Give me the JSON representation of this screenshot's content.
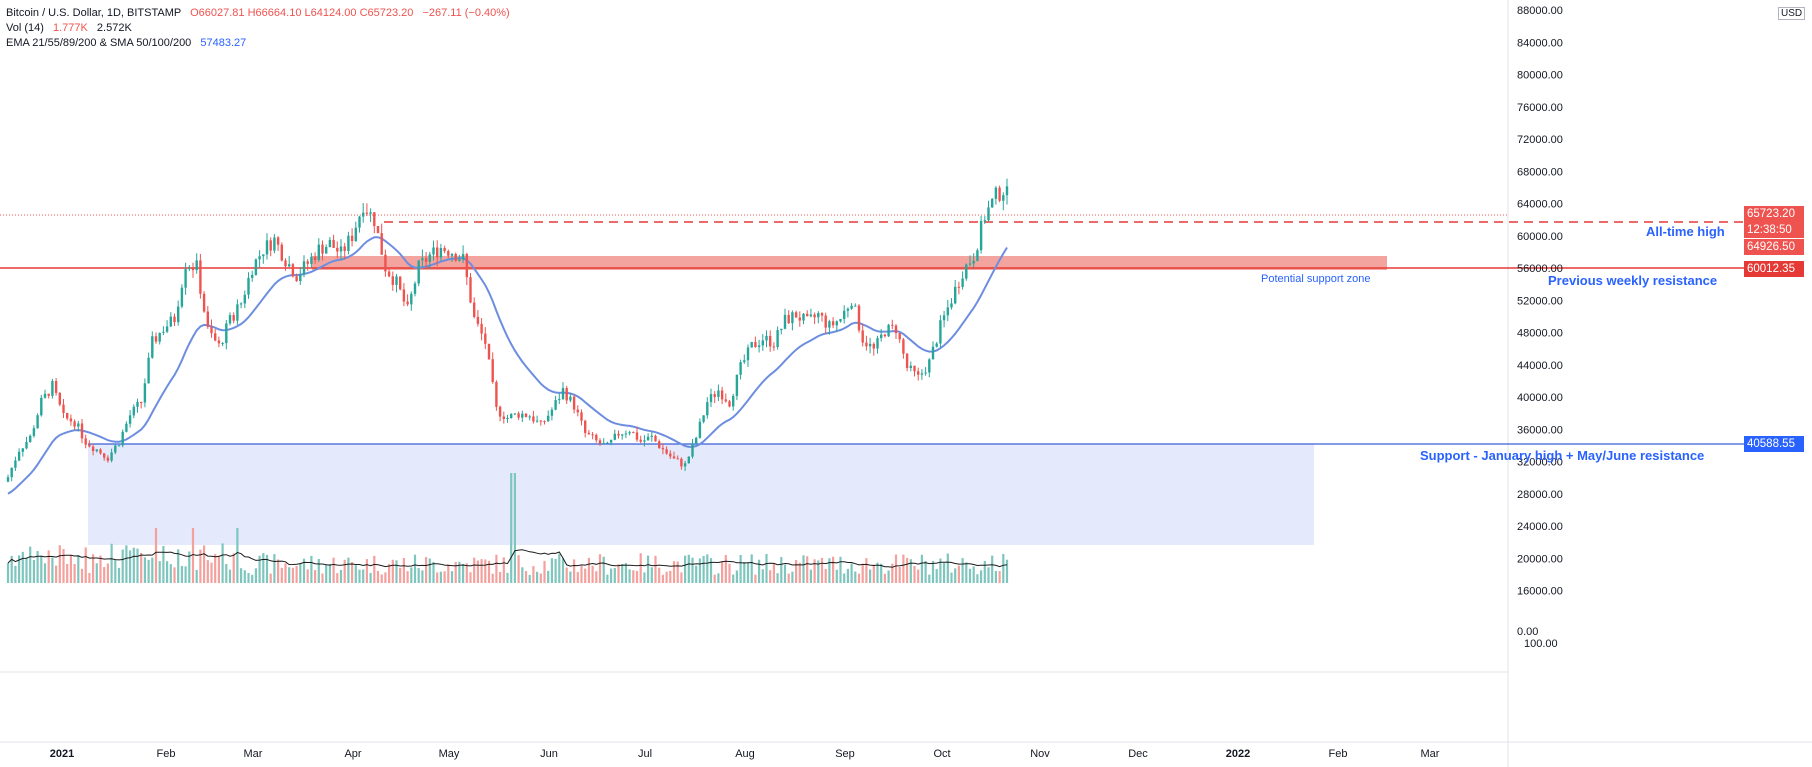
{
  "legend": {
    "symbol": "Bitcoin / U.S. Dollar, 1D, BITSTAMP",
    "open": "O66027.81",
    "high": "H66664.10",
    "low": "L64124.00",
    "close": "C65723.20",
    "change": "−267.11 (−0.40%)",
    "vol_label": "Vol (14)",
    "vol_value": "1.777K",
    "vol_ma": "2.572K",
    "ind_label": "EMA 21/55/89/200 & SMA 50/100/200",
    "ind_value": "57483.27"
  },
  "currency": "USD",
  "price_axis": [
    "88000.00",
    "84000.00",
    "80000.00",
    "76000.00",
    "72000.00",
    "68000.00",
    "64000.00",
    "60000.00",
    "56000.00",
    "52000.00",
    "48000.00",
    "44000.00",
    "40000.00",
    "36000.00",
    "32000.00",
    "28000.00",
    "24000.00",
    "20000.00",
    "16000.00"
  ],
  "volume_axis": [
    "0.00",
    "100.00"
  ],
  "time_axis": [
    "2021",
    "Feb",
    "Mar",
    "Apr",
    "May",
    "Jun",
    "Jul",
    "Aug",
    "Sep",
    "Oct",
    "Nov",
    "Dec",
    "2022",
    "Feb",
    "Mar"
  ],
  "price_labels": {
    "last": "65723.20",
    "countdown": "12:38:50",
    "prev": "64926.50",
    "resistance": "60012.35",
    "support": "40588.55"
  },
  "annotations": {
    "ath": "All-time high",
    "potential": "Potential support zone",
    "weekly": "Previous weekly resistance",
    "support": "Support - January high + May/June resistance"
  },
  "colors": {
    "up": "#26a69a",
    "down": "#ef5350",
    "ema": "#6d8ee0",
    "support_line": "#2962ff",
    "resistance_line": "#e53935",
    "support_zone": "#e3e8fb",
    "resist_zone": "#f39a94"
  },
  "chart_data": {
    "type": "candlestick",
    "timeframe": "1D",
    "y_range": [
      15000,
      88000
    ],
    "levels": {
      "all_time_high": 64926.5,
      "weekly_resistance": 60012.35,
      "support": 40588.55,
      "support_zone_low": 29600,
      "resistance_zone_high": 61600
    },
    "daily_close": [
      [
        0,
        29000
      ],
      [
        3,
        32500
      ],
      [
        6,
        34000
      ],
      [
        9,
        38500
      ],
      [
        12,
        40500
      ],
      [
        15,
        36500
      ],
      [
        18,
        36000
      ],
      [
        21,
        33500
      ],
      [
        24,
        32500
      ],
      [
        27,
        31500
      ],
      [
        30,
        33500
      ],
      [
        33,
        36800
      ],
      [
        36,
        38500
      ],
      [
        39,
        46000
      ],
      [
        42,
        47800
      ],
      [
        45,
        49000
      ],
      [
        48,
        56000
      ],
      [
        51,
        55500
      ],
      [
        54,
        47500
      ],
      [
        57,
        45500
      ],
      [
        60,
        48800
      ],
      [
        63,
        51000
      ],
      [
        66,
        55500
      ],
      [
        69,
        57800
      ],
      [
        72,
        59000
      ],
      [
        75,
        56500
      ],
      [
        78,
        54500
      ],
      [
        81,
        56000
      ],
      [
        84,
        57800
      ],
      [
        87,
        58500
      ],
      [
        90,
        57200
      ],
      [
        93,
        59500
      ],
      [
        96,
        63500
      ],
      [
        99,
        61500
      ],
      [
        102,
        55500
      ],
      [
        105,
        53500
      ],
      [
        108,
        50000
      ],
      [
        111,
        55500
      ],
      [
        114,
        57000
      ],
      [
        117,
        58000
      ],
      [
        120,
        57500
      ],
      [
        123,
        56500
      ],
      [
        126,
        49000
      ],
      [
        129,
        46000
      ],
      [
        132,
        37500
      ],
      [
        135,
        36500
      ],
      [
        138,
        37000
      ],
      [
        141,
        36800
      ],
      [
        144,
        35500
      ],
      [
        147,
        37500
      ],
      [
        150,
        40000
      ],
      [
        153,
        38000
      ],
      [
        156,
        34500
      ],
      [
        159,
        33500
      ],
      [
        162,
        32800
      ],
      [
        165,
        34500
      ],
      [
        168,
        35000
      ],
      [
        171,
        33500
      ],
      [
        174,
        34000
      ],
      [
        177,
        32500
      ],
      [
        180,
        31200
      ],
      [
        183,
        30500
      ],
      [
        186,
        34000
      ],
      [
        189,
        38500
      ],
      [
        192,
        40000
      ],
      [
        195,
        38500
      ],
      [
        198,
        42800
      ],
      [
        201,
        45500
      ],
      [
        204,
        46500
      ],
      [
        207,
        46000
      ],
      [
        210,
        48800
      ],
      [
        213,
        49500
      ],
      [
        216,
        48500
      ],
      [
        219,
        49500
      ],
      [
        222,
        48000
      ],
      [
        225,
        49000
      ],
      [
        228,
        51500
      ],
      [
        231,
        46500
      ],
      [
        234,
        45000
      ],
      [
        237,
        47500
      ],
      [
        240,
        47800
      ],
      [
        243,
        42800
      ],
      [
        246,
        41500
      ],
      [
        249,
        43500
      ],
      [
        252,
        48000
      ],
      [
        255,
        51500
      ],
      [
        258,
        55000
      ],
      [
        261,
        57000
      ],
      [
        264,
        62000
      ],
      [
        267,
        64500
      ],
      [
        270,
        65723
      ]
    ],
    "ema_21_last": 57483.27,
    "volume_range": [
      0,
      100
    ]
  }
}
